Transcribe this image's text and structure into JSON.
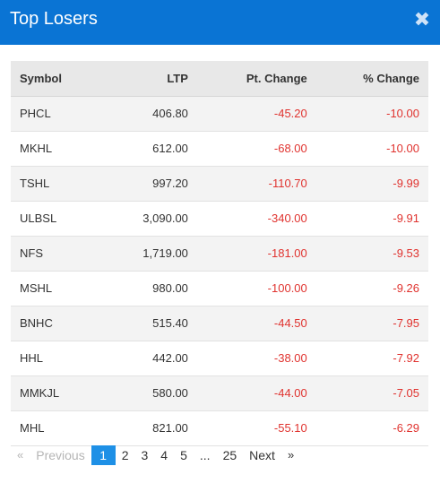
{
  "modal": {
    "title": "Top Losers",
    "close_icon_glyph": "✖"
  },
  "table": {
    "headers": {
      "symbol": "Symbol",
      "ltp": "LTP",
      "pt_change": "Pt. Change",
      "pct_change": "% Change"
    },
    "rows": [
      {
        "symbol": "PHCL",
        "ltp": "406.80",
        "pt_change": "-45.20",
        "pct_change": "-10.00"
      },
      {
        "symbol": "MKHL",
        "ltp": "612.00",
        "pt_change": "-68.00",
        "pct_change": "-10.00"
      },
      {
        "symbol": "TSHL",
        "ltp": "997.20",
        "pt_change": "-110.70",
        "pct_change": "-9.99"
      },
      {
        "symbol": "ULBSL",
        "ltp": "3,090.00",
        "pt_change": "-340.00",
        "pct_change": "-9.91"
      },
      {
        "symbol": "NFS",
        "ltp": "1,719.00",
        "pt_change": "-181.00",
        "pct_change": "-9.53"
      },
      {
        "symbol": "MSHL",
        "ltp": "980.00",
        "pt_change": "-100.00",
        "pct_change": "-9.26"
      },
      {
        "symbol": "BNHC",
        "ltp": "515.40",
        "pt_change": "-44.50",
        "pct_change": "-7.95"
      },
      {
        "symbol": "HHL",
        "ltp": "442.00",
        "pt_change": "-38.00",
        "pct_change": "-7.92"
      },
      {
        "symbol": "MMKJL",
        "ltp": "580.00",
        "pt_change": "-44.00",
        "pct_change": "-7.05"
      },
      {
        "symbol": "MHL",
        "ltp": "821.00",
        "pt_change": "-55.10",
        "pct_change": "-6.29"
      }
    ]
  },
  "pagination": {
    "prev_arrow": "«",
    "prev_label": "Previous",
    "pages": [
      "1",
      "2",
      "3",
      "4",
      "5"
    ],
    "ellipsis": "...",
    "last_page": "25",
    "next_label": "Next",
    "next_arrow": "»",
    "current_page": "1"
  },
  "colors": {
    "header_bg": "#0a74d4",
    "negative": "#e0332f",
    "active_page": "#1e90e6"
  }
}
